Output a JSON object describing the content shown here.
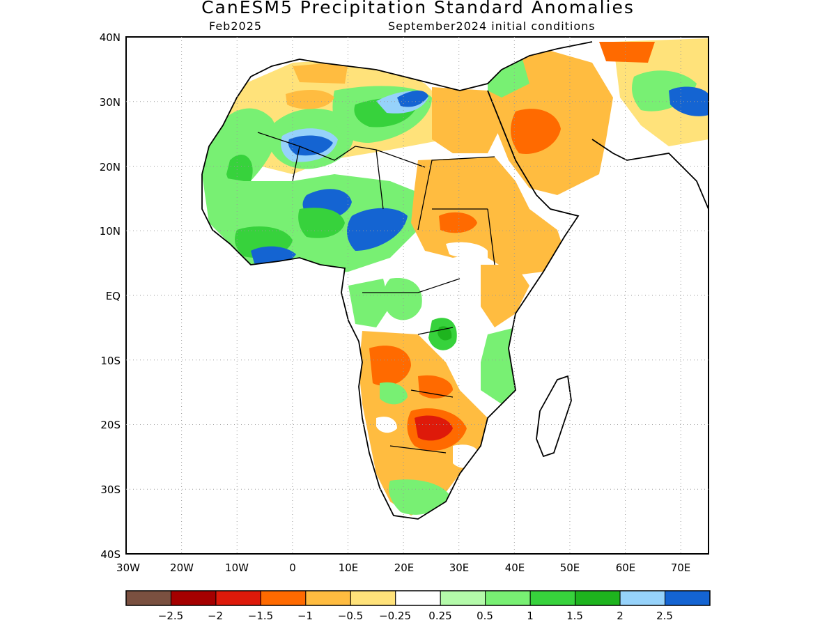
{
  "title": "CanESM5 Precipitation Standard Anomalies",
  "subtitle_left": "Feb2025",
  "subtitle_right": "September2024 initial conditions",
  "lat_ticks": [
    "40N",
    "30N",
    "20N",
    "10N",
    "EQ",
    "10S",
    "20S",
    "30S",
    "40S"
  ],
  "lon_ticks": [
    "30W",
    "20W",
    "10W",
    "0",
    "10E",
    "20E",
    "30E",
    "40E",
    "50E",
    "60E",
    "70E"
  ],
  "map_extent": {
    "lon": [
      -30,
      75
    ],
    "lat": [
      -40,
      40
    ]
  },
  "colorbar": {
    "colors": [
      "#7a5040",
      "#a50000",
      "#de1a0a",
      "#ff6a00",
      "#ffbc40",
      "#ffe27a",
      "#ffffff",
      "#b4faaa",
      "#78f073",
      "#37d23c",
      "#1eb41e",
      "#96d2fa",
      "#1464d2"
    ],
    "labels": [
      "−2.5",
      "−2",
      "−1.5",
      "−1",
      "−0.5",
      "−0.25",
      "0.25",
      "0.5",
      "1",
      "1.5",
      "2",
      "2.5"
    ]
  }
}
